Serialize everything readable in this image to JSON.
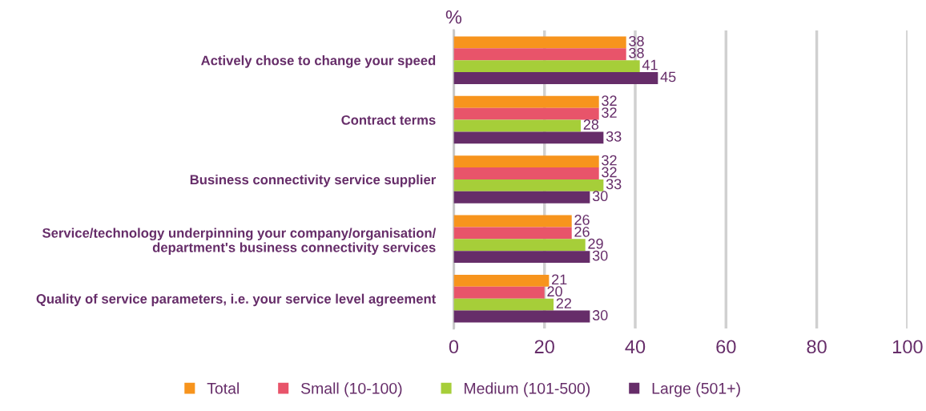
{
  "chart_data": {
    "type": "bar",
    "orientation": "horizontal",
    "xlabel": "%",
    "categories": [
      "Actively chose to change your speed",
      "Contract terms",
      "Business connectivity service supplier",
      "Service/technology underpinning your company/organisation/\ndepartment's business connectivity services",
      "Quality of service parameters, i.e. your service level agreement"
    ],
    "series": [
      {
        "name": "Total",
        "color": "#f7941d",
        "values": [
          38,
          32,
          32,
          26,
          21
        ]
      },
      {
        "name": "Small (10-100)",
        "color": "#e8546a",
        "values": [
          38,
          32,
          32,
          26,
          20
        ]
      },
      {
        "name": "Medium (101-500)",
        "color": "#a6ce39",
        "values": [
          41,
          28,
          33,
          29,
          22
        ]
      },
      {
        "name": "Large (501+)",
        "color": "#662d69",
        "values": [
          45,
          33,
          30,
          30,
          30
        ]
      }
    ],
    "xlim": [
      0,
      100
    ],
    "xticks": [
      0,
      20,
      40,
      60,
      80,
      100
    ],
    "grid": "x",
    "legend": "bottom",
    "data_labels": true
  }
}
